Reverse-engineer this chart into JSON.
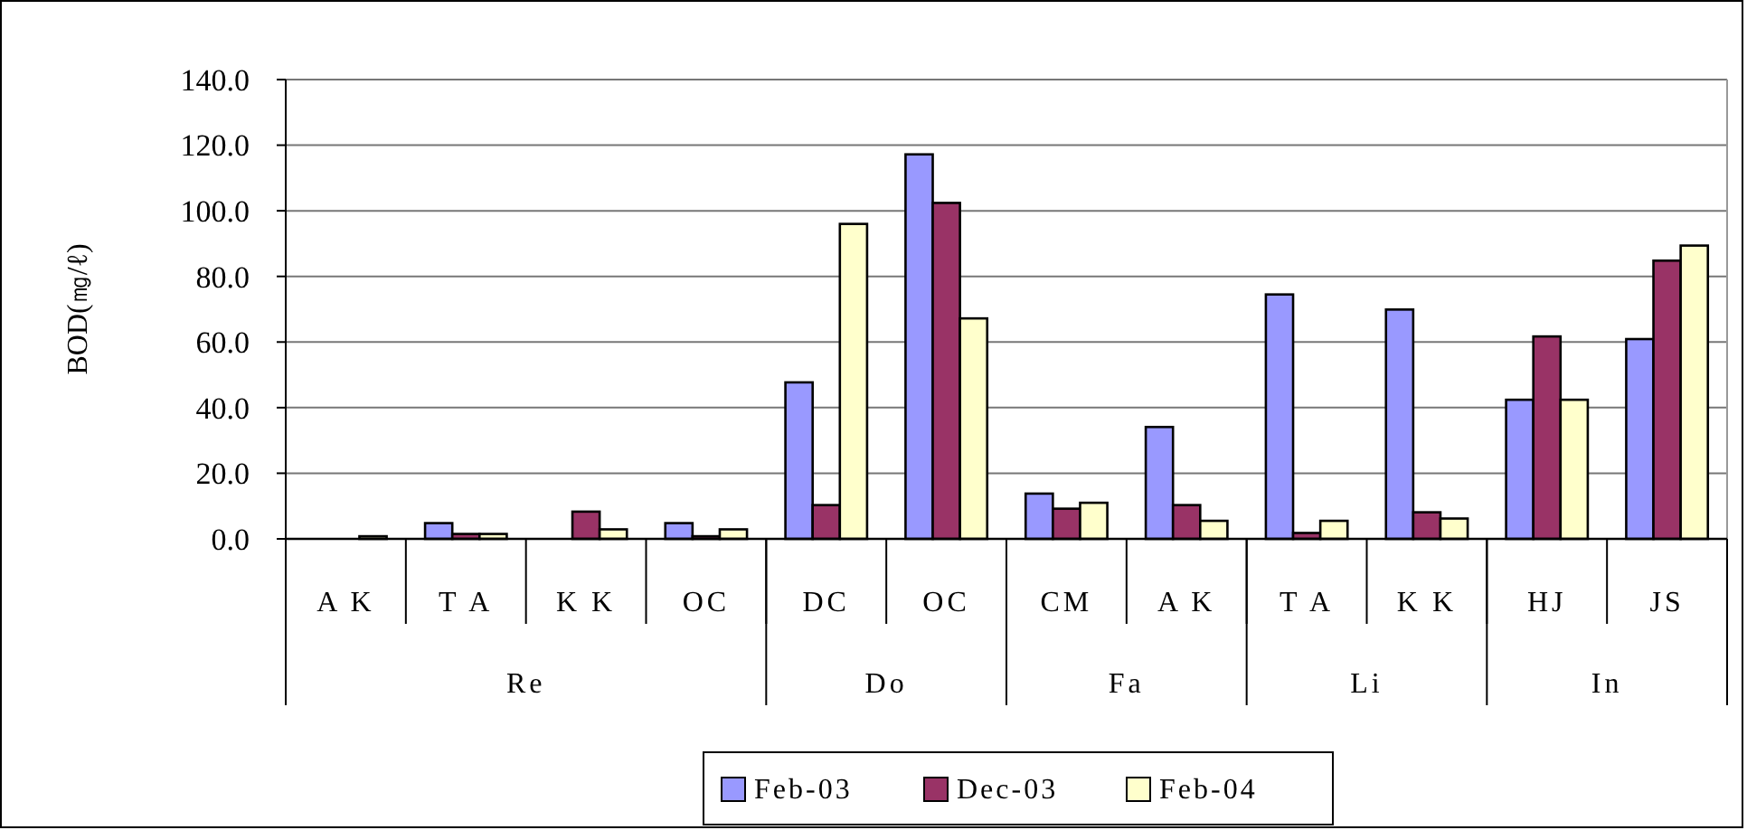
{
  "chart_data": {
    "type": "bar",
    "ylabel": "BOD(㎎/ℓ)",
    "categories": [
      "A K",
      "T A",
      "K K",
      "OC",
      "DC",
      "OC",
      "CM",
      "A K",
      "T A",
      "K K",
      "HJ",
      "JS"
    ],
    "annotations": [
      "Re",
      "Do",
      "Fa",
      "Li",
      "In"
    ],
    "series": [
      {
        "name": "Feb-03",
        "color": "#9999ff",
        "values": [
          0,
          4.8,
          0,
          4.8,
          47.7,
          117.2,
          13.8,
          34.1,
          74.5,
          69.9,
          42.4,
          60.9
        ]
      },
      {
        "name": "Dec-03",
        "color": "#993366",
        "values": [
          0,
          1.5,
          8.3,
          0.8,
          10.3,
          102.4,
          9.2,
          10.3,
          1.8,
          8.1,
          61.7,
          84.8
        ]
      },
      {
        "name": "Feb-04",
        "color": "#ffffcc",
        "values": [
          0.8,
          1.5,
          2.9,
          2.9,
          96.0,
          67.2,
          11.0,
          5.5,
          5.5,
          6.2,
          42.4,
          89.4
        ]
      }
    ],
    "ylim": [
      0,
      140
    ],
    "yticks": [
      {
        "value": 0,
        "label": "0.0"
      },
      {
        "value": 20,
        "label": "20.0"
      },
      {
        "value": 40,
        "label": "40.0"
      },
      {
        "value": 60,
        "label": "60.0"
      },
      {
        "value": 80,
        "label": "80.0"
      },
      {
        "value": 100,
        "label": "100.0"
      },
      {
        "value": 120,
        "label": "120.0"
      },
      {
        "value": 140,
        "label": "140.0"
      }
    ],
    "grid": "y",
    "legend": "bottom"
  }
}
